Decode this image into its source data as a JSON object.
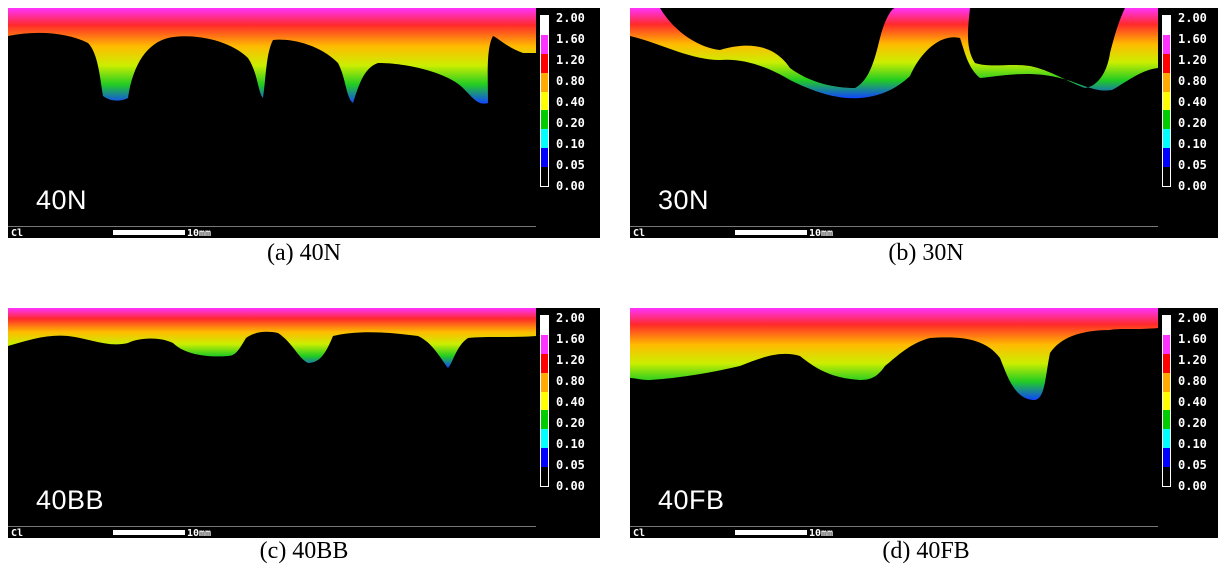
{
  "panels": [
    {
      "sample": "40N",
      "caption": "(a) 40N"
    },
    {
      "sample": "30N",
      "caption": "(b) 30N"
    },
    {
      "sample": "40BB",
      "caption": "(c) 40BB"
    },
    {
      "sample": "40FB",
      "caption": "(d) 40FB"
    }
  ],
  "element": "Cl",
  "scale_text": "10mm",
  "colorbar": {
    "ticks": [
      "2.00",
      "1.60",
      "1.20",
      "0.80",
      "0.40",
      "0.20",
      "0.10",
      "0.05",
      "0.00"
    ],
    "colors": [
      "#ffffff",
      "#ff33ff",
      "#ff0000",
      "#ffaa00",
      "#ffff00",
      "#00cc00",
      "#00ffff",
      "#0000ff",
      "#000000"
    ]
  }
}
